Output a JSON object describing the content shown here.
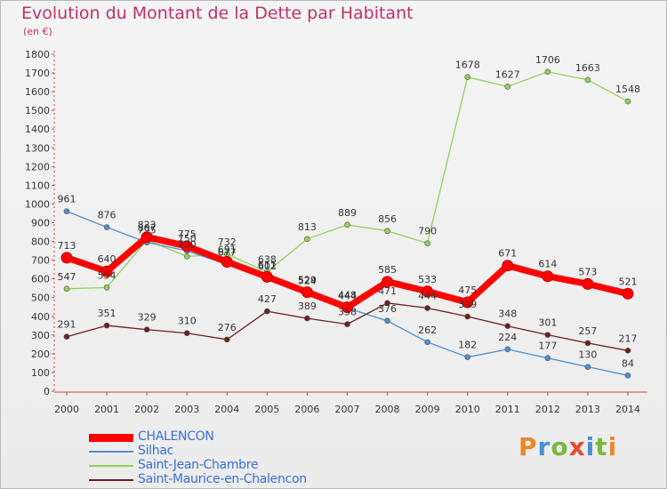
{
  "title": "Evolution du Montant de la Dette par Habitant",
  "unit": "(en €)",
  "logo": {
    "text": "Proxiti",
    "colors": [
      "#e8872a",
      "#4a8fd0",
      "#7ab83c",
      "#e34b2a",
      "#4a8fd0",
      "#7ab83c",
      "#e8872a"
    ]
  },
  "chart_data": {
    "type": "line",
    "title": "Evolution du Montant de la Dette par Habitant",
    "ylabel": "(en €)",
    "xlabel": "",
    "categories": [
      "2000",
      "2001",
      "2002",
      "2003",
      "2004",
      "2005",
      "2006",
      "2007",
      "2008",
      "2009",
      "2010",
      "2011",
      "2012",
      "2013",
      "2014"
    ],
    "ylim": [
      0,
      1800
    ],
    "yticks": [
      0,
      100,
      200,
      300,
      400,
      500,
      600,
      700,
      800,
      900,
      1000,
      1100,
      1200,
      1300,
      1400,
      1500,
      1600,
      1700,
      1800
    ],
    "grid": false,
    "legend_position": "bottom-left",
    "series": [
      {
        "name": "CHALENCON",
        "color": "#ff0000",
        "values": [
          713,
          640,
          823,
          775,
          691,
          611,
          529,
          448,
          585,
          533,
          475,
          671,
          614,
          573,
          521
        ]
      },
      {
        "name": "Silhac",
        "color": "#4f8ecf",
        "values": [
          961,
          876,
          795,
          750,
          677,
          602,
          524,
          444,
          376,
          262,
          182,
          224,
          177,
          130,
          84
        ]
      },
      {
        "name": "Saint-Jean-Chambre",
        "color": "#8fd25a",
        "values": [
          547,
          554,
          807,
          720,
          732,
          638,
          813,
          889,
          856,
          790,
          1678,
          1627,
          1706,
          1663,
          1548
        ]
      },
      {
        "name": "Saint-Maurice-en-Chalencon",
        "color": "#6b1f1f",
        "values": [
          291,
          351,
          329,
          310,
          276,
          427,
          389,
          358,
          471,
          444,
          399,
          348,
          301,
          257,
          217
        ]
      }
    ]
  }
}
